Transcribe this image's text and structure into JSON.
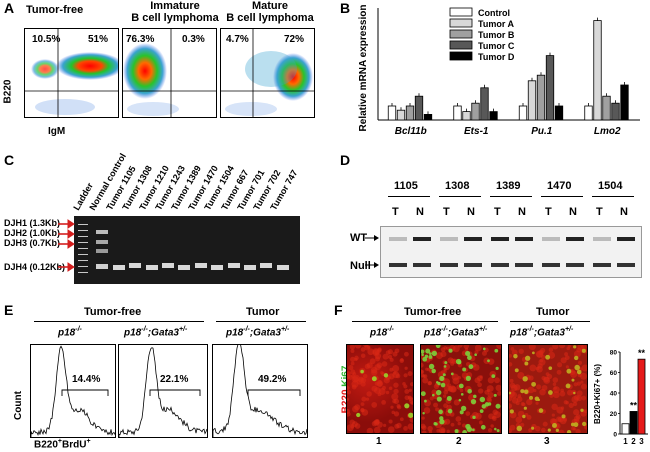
{
  "panel_labels": {
    "a": "A",
    "b": "B",
    "c": "C",
    "d": "D",
    "e": "E",
    "f": "F"
  },
  "panel_a": {
    "plots": [
      {
        "title": "Tumor-free",
        "q_ul": "10.5%",
        "q_ur": "51%"
      },
      {
        "title": "Immature\nB cell lymphoma",
        "q_ul": "76.3%",
        "q_ur": "0.3%"
      },
      {
        "title": "Mature\nB cell lymphoma",
        "q_ul": "4.7%",
        "q_ur": "72%"
      }
    ],
    "y_axis": "B220",
    "x_axis": "IgM"
  },
  "chart_data": {
    "type": "bar",
    "ylabel": "Relative mRNA expression",
    "ylim": [
      0,
      8
    ],
    "categories": [
      "Bcl11b",
      "Ets-1",
      "Pu.1",
      "Lmo2"
    ],
    "series": [
      {
        "name": "Control",
        "values": [
          1.0,
          1.0,
          1.0,
          1.0
        ]
      },
      {
        "name": "Tumor A",
        "values": [
          0.7,
          0.6,
          2.8,
          7.1
        ]
      },
      {
        "name": "Tumor B",
        "values": [
          1.0,
          1.2,
          3.2,
          1.7
        ]
      },
      {
        "name": "Tumor C",
        "values": [
          1.7,
          2.3,
          4.6,
          1.2
        ]
      },
      {
        "name": "Tumor D",
        "values": [
          0.4,
          0.6,
          1.0,
          2.5
        ]
      }
    ],
    "colors": [
      "#ffffff",
      "#d8d8d8",
      "#a0a0a0",
      "#585858",
      "#000000"
    ]
  },
  "panel_c": {
    "lanes": [
      "Ladder",
      "Normal control",
      "Tumor 1105",
      "Tumor 1308",
      "Tumor 1210",
      "Tumor 1243",
      "Tumor 1389",
      "Tumor 1470",
      "Tumor 1504",
      "Tumor 667",
      "Tumor 701",
      "Tumor 702",
      "Tumor 747"
    ],
    "bands": [
      "DJH1 (1.3Kb)",
      "DJH2 (1.0Kb)",
      "DJH3 (0.7Kb)",
      "DJH4 (0.12Kb)"
    ]
  },
  "panel_d": {
    "samples": [
      "1105",
      "1308",
      "1389",
      "1470",
      "1504"
    ],
    "lane_t": "T",
    "lane_n": "N",
    "rows": [
      "WT",
      "Null"
    ]
  },
  "panel_e": {
    "group_left": "Tumor-free",
    "group_right": "Tumor",
    "genotypes": [
      "p18",
      "p18",
      "p18"
    ],
    "genotype_sup": "-/-",
    "gata_label": ";Gata3",
    "gata_sup": "+/-",
    "percents": [
      "14.4%",
      "22.1%",
      "49.2%"
    ],
    "y_axis": "Count",
    "x_axis": "B220",
    "x_axis_sup": "+",
    "x_axis_brdu": "BrdU",
    "percent_values": [
      14.4,
      22.1,
      49.2
    ]
  },
  "panel_f": {
    "group_left": "Tumor-free",
    "group_right": "Tumor",
    "y_label_b220": "B220",
    "y_label_ki67": "Ki67",
    "image_numbers": [
      "1",
      "2",
      "3"
    ],
    "mini_chart": {
      "ylabel": "B220+Ki67+ (%)",
      "yticks": [
        "0",
        "20",
        "40",
        "60",
        "80"
      ],
      "ylim": [
        0,
        80
      ],
      "categories": [
        "1",
        "2",
        "3"
      ],
      "values": [
        10,
        22,
        73
      ],
      "colors": [
        "#ffffff",
        "#000000",
        "#e51a1a"
      ],
      "sig": [
        "",
        "**",
        "**"
      ]
    }
  }
}
